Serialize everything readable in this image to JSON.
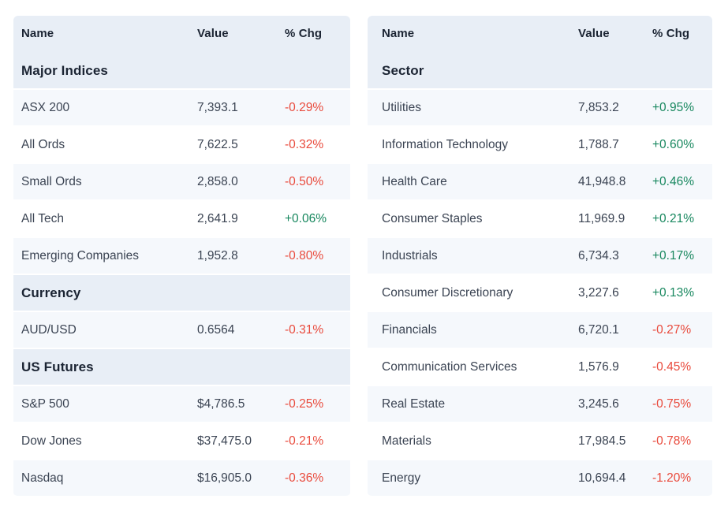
{
  "columns": {
    "name": "Name",
    "value": "Value",
    "change": "% Chg"
  },
  "colors": {
    "positive": "#17875e",
    "negative": "#e94a3c",
    "header_bg": "#e8eef6",
    "row_alt_bg": "#f5f8fc",
    "row_bg": "#ffffff",
    "heading_text": "#1b2433",
    "body_text": "#3b4453"
  },
  "left_table": {
    "sections": [
      {
        "title": "Major Indices",
        "rows": [
          {
            "name": "ASX 200",
            "value": "7,393.1",
            "change": "-0.29%"
          },
          {
            "name": "All Ords",
            "value": "7,622.5",
            "change": "-0.32%"
          },
          {
            "name": "Small Ords",
            "value": "2,858.0",
            "change": "-0.50%"
          },
          {
            "name": "All Tech",
            "value": "2,641.9",
            "change": "+0.06%"
          },
          {
            "name": "Emerging Companies",
            "value": "1,952.8",
            "change": "-0.80%"
          }
        ]
      },
      {
        "title": "Currency",
        "rows": [
          {
            "name": "AUD/USD",
            "value": "0.6564",
            "change": "-0.31%"
          }
        ]
      },
      {
        "title": "US Futures",
        "rows": [
          {
            "name": "S&P 500",
            "value": "$4,786.5",
            "change": "-0.25%"
          },
          {
            "name": "Dow Jones",
            "value": "$37,475.0",
            "change": "-0.21%"
          },
          {
            "name": "Nasdaq",
            "value": "$16,905.0",
            "change": "-0.36%"
          }
        ]
      }
    ]
  },
  "right_table": {
    "sections": [
      {
        "title": "Sector",
        "rows": [
          {
            "name": "Utilities",
            "value": "7,853.2",
            "change": "+0.95%"
          },
          {
            "name": "Information Technology",
            "value": "1,788.7",
            "change": "+0.60%"
          },
          {
            "name": "Health Care",
            "value": "41,948.8",
            "change": "+0.46%"
          },
          {
            "name": "Consumer Staples",
            "value": "11,969.9",
            "change": "+0.21%"
          },
          {
            "name": "Industrials",
            "value": "6,734.3",
            "change": "+0.17%"
          },
          {
            "name": "Consumer Discretionary",
            "value": "3,227.6",
            "change": "+0.13%"
          },
          {
            "name": "Financials",
            "value": "6,720.1",
            "change": "-0.27%"
          },
          {
            "name": "Communication Services",
            "value": "1,576.9",
            "change": "-0.45%"
          },
          {
            "name": "Real Estate",
            "value": "3,245.6",
            "change": "-0.75%"
          },
          {
            "name": "Materials",
            "value": "17,984.5",
            "change": "-0.78%"
          },
          {
            "name": "Energy",
            "value": "10,694.4",
            "change": "-1.20%"
          }
        ]
      }
    ]
  }
}
